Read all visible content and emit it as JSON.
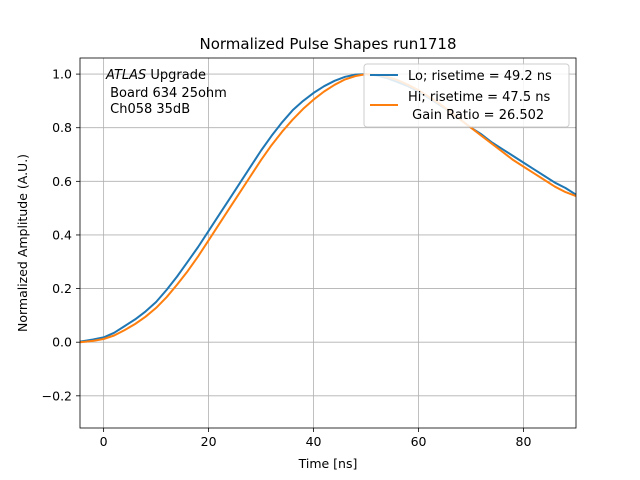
{
  "chart_data": {
    "type": "line",
    "title": "Normalized Pulse Shapes run1718",
    "xlabel": "Time [ns]",
    "ylabel": "Normalized Amplitude (A.U.)",
    "xlim": [
      -4.5,
      90
    ],
    "ylim": [
      -0.32,
      1.06
    ],
    "grid": true,
    "legend_placement": "top-right",
    "xticks": [
      0,
      20,
      40,
      60,
      80
    ],
    "xtick_labels": [
      "0",
      "20",
      "40",
      "60",
      "80"
    ],
    "yticks": [
      -0.2,
      0.0,
      0.2,
      0.4,
      0.6,
      0.8,
      1.0
    ],
    "ytick_labels": [
      "−0.2",
      "0.0",
      "0.2",
      "0.4",
      "0.6",
      "0.8",
      "1.0"
    ],
    "annotation": {
      "line1_italic": "ATLAS",
      "line1_rest": " Upgrade",
      "line2": " Board 634 25ohm",
      "line3": " Ch058 35dB"
    },
    "series": [
      {
        "name": "Lo; risetime = 49.2 ns",
        "color": "#1f77b4",
        "x": [
          -4.5,
          -2,
          0,
          2,
          4,
          6,
          8,
          10,
          12,
          14,
          16,
          18,
          20,
          22,
          24,
          26,
          28,
          30,
          32,
          34,
          36,
          38,
          40,
          42,
          44,
          46,
          48,
          50,
          52,
          54,
          56,
          58,
          60,
          62,
          64,
          66,
          68,
          70,
          72,
          74,
          76,
          78,
          80,
          82,
          84,
          86,
          88,
          90
        ],
        "y": [
          0.002,
          0.01,
          0.018,
          0.035,
          0.06,
          0.085,
          0.115,
          0.15,
          0.195,
          0.245,
          0.3,
          0.355,
          0.415,
          0.475,
          0.535,
          0.595,
          0.655,
          0.715,
          0.77,
          0.82,
          0.865,
          0.9,
          0.93,
          0.955,
          0.975,
          0.99,
          0.998,
          1.0,
          0.995,
          0.985,
          0.97,
          0.955,
          0.935,
          0.91,
          0.885,
          0.86,
          0.83,
          0.8,
          0.775,
          0.745,
          0.72,
          0.695,
          0.67,
          0.645,
          0.62,
          0.595,
          0.575,
          0.55
        ]
      },
      {
        "name": "Hi; risetime = 47.5 ns\n Gain Ratio = 26.502",
        "color": "#ff7f0e",
        "x": [
          -4.5,
          -2,
          0,
          2,
          4,
          6,
          8,
          10,
          12,
          14,
          16,
          18,
          20,
          22,
          24,
          26,
          28,
          30,
          32,
          34,
          36,
          38,
          40,
          42,
          44,
          46,
          48,
          50,
          52,
          54,
          56,
          58,
          60,
          62,
          64,
          66,
          68,
          70,
          72,
          74,
          76,
          78,
          80,
          82,
          84,
          86,
          88,
          90
        ],
        "y": [
          0.0,
          0.005,
          0.012,
          0.025,
          0.045,
          0.068,
          0.095,
          0.128,
          0.168,
          0.215,
          0.265,
          0.32,
          0.38,
          0.44,
          0.5,
          0.56,
          0.62,
          0.68,
          0.735,
          0.785,
          0.83,
          0.87,
          0.905,
          0.935,
          0.96,
          0.98,
          0.993,
          1.0,
          0.998,
          0.99,
          0.978,
          0.96,
          0.94,
          0.915,
          0.89,
          0.86,
          0.83,
          0.8,
          0.77,
          0.74,
          0.71,
          0.68,
          0.655,
          0.63,
          0.605,
          0.58,
          0.56,
          0.545
        ]
      }
    ]
  }
}
